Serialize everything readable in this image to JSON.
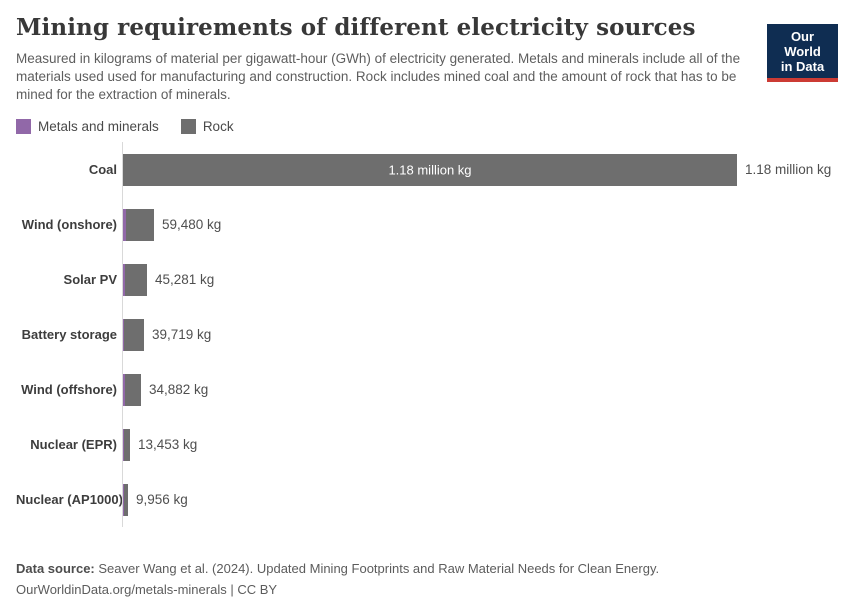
{
  "header": {
    "title": "Mining requirements of different electricity sources",
    "subtitle": "Measured in kilograms of material per gigawatt-hour (GWh) of electricity generated. Metals and minerals include all of the materials used used for manufacturing and construction. Rock includes mined coal and the amount of rock that has to be mined for the extraction of minerals.",
    "logo": {
      "line1": "Our World",
      "line2": "in Data",
      "bg_color": "#0f2d52",
      "accent_color": "#cc3b34"
    }
  },
  "legend": {
    "items": [
      {
        "label": "Metals and minerals",
        "color": "#9168a8"
      },
      {
        "label": "Rock",
        "color": "#6e6e6e"
      }
    ]
  },
  "chart_data": {
    "type": "bar",
    "orientation": "horizontal",
    "unit": "kg of material per GWh",
    "categories": [
      "Coal",
      "Wind (onshore)",
      "Solar PV",
      "Battery storage",
      "Wind (offshore)",
      "Nuclear (EPR)",
      "Nuclear (AP1000)"
    ],
    "totals_kg": [
      1180000,
      59480,
      45281,
      39719,
      34882,
      13453,
      9956
    ],
    "value_labels": [
      "1.18 million kg",
      "59,480 kg",
      "45,281 kg",
      "39,719 kg",
      "34,882 kg",
      "13,453 kg",
      "9,956 kg"
    ],
    "inside_bar_label": {
      "category": "Coal",
      "text": "1.18 million kg"
    },
    "series": [
      {
        "name": "Metals and minerals",
        "color": "#9168a8",
        "values_estimated_kg": [
          0,
          5800,
          2900,
          1900,
          2900,
          1900,
          1000
        ]
      },
      {
        "name": "Rock",
        "color": "#6e6e6e",
        "values_estimated_kg": [
          1180000,
          53680,
          42381,
          37819,
          31982,
          11553,
          8956
        ]
      }
    ],
    "xlim": [
      0,
      1180000
    ],
    "grid": false,
    "legend_position": "top-left"
  },
  "footer": {
    "source_label": "Data source:",
    "source_text": " Seaver Wang et al. (2024). Updated Mining Footprints and Raw Material Needs for Clean Energy.",
    "citation": "OurWorldinData.org/metals-minerals | CC BY"
  }
}
